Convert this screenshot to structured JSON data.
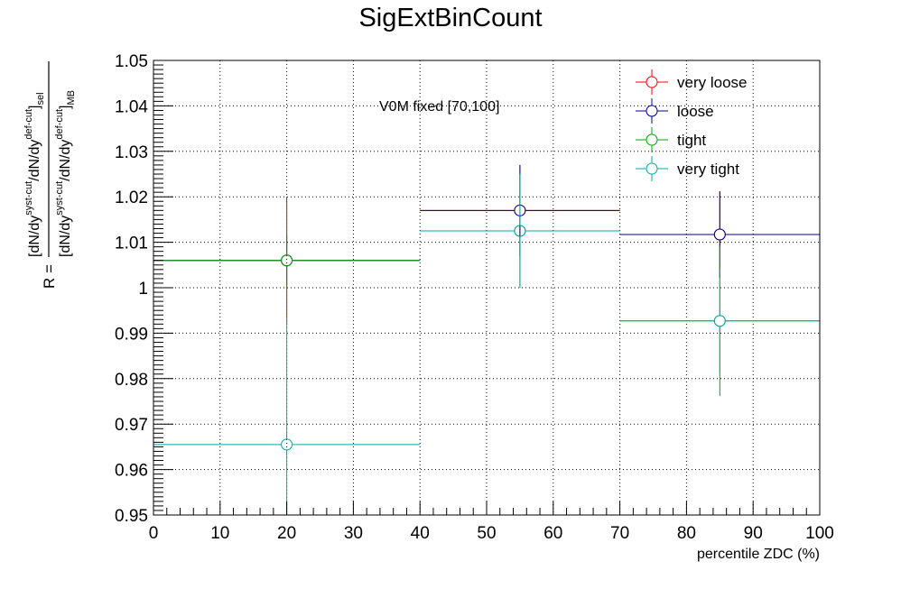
{
  "chart_data": {
    "type": "scatter",
    "title": "SigExtBinCount",
    "xlabel": "percentile ZDC (%)",
    "ylabel_parts": {
      "prefix": "R = ",
      "num_a": "[dN/dy",
      "num_sup1": "syst-cut",
      "num_b": "/dN/dy",
      "num_sup2": "def-cut",
      "num_c": "]",
      "num_sub": "sel",
      "den_a": "[dN/dy",
      "den_sup1": "syst-cut",
      "den_b": "/dN/dy",
      "den_sup2": "def-cut",
      "den_c": "]",
      "den_sub": "MB"
    },
    "annotation": "V0M fixed [70,100]",
    "xlim": [
      0,
      100
    ],
    "ylim": [
      0.95,
      1.05
    ],
    "x_ticks": [
      "0",
      "10",
      "20",
      "30",
      "40",
      "50",
      "60",
      "70",
      "80",
      "90",
      "100"
    ],
    "y_ticks": [
      "0.95",
      "0.96",
      "0.97",
      "0.98",
      "0.99",
      "1",
      "1.01",
      "1.02",
      "1.03",
      "1.04",
      "1.05"
    ],
    "grid": true,
    "legend_position": "top-right",
    "bins": [
      [
        0,
        40
      ],
      [
        40,
        70
      ],
      [
        70,
        100
      ]
    ],
    "x": [
      20,
      55,
      85
    ],
    "series": [
      {
        "name": "very loose",
        "color": "#ff0000",
        "values": [
          1.006,
          1.017,
          1.0117
        ],
        "errors": [
          0.014,
          0.01,
          0.0095
        ]
      },
      {
        "name": "loose",
        "color": "#000099",
        "values": [
          1.006,
          1.017,
          1.0117
        ],
        "errors": [
          0.0055,
          0.01,
          0.0095
        ]
      },
      {
        "name": "tight",
        "color": "#00aa00",
        "values": [
          1.006,
          1.0125,
          0.9927
        ],
        "errors": [
          0.0125,
          0.0125,
          0.0165
        ]
      },
      {
        "name": "very tight",
        "color": "#00aaaa",
        "values": [
          0.9655,
          1.0125,
          0.9927
        ],
        "errors": [
          0.028,
          0.0125,
          0.0115
        ]
      }
    ]
  }
}
